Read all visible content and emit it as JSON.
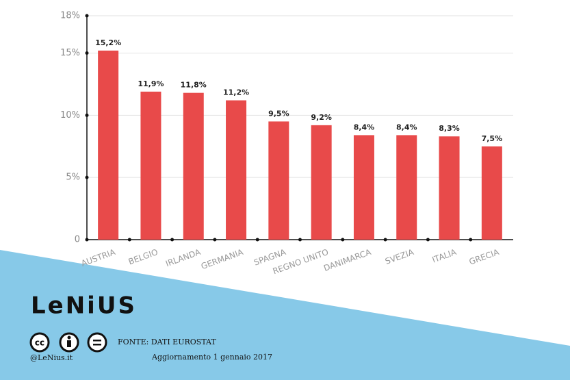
{
  "chart_data": {
    "type": "bar",
    "categories": [
      "AUSTRIA",
      "BELGIO",
      "IRLANDA",
      "GERMANIA",
      "SPAGNA",
      "REGNO UNITO",
      "DANIMARCA",
      "SVEZIA",
      "ITALIA",
      "GRECIA"
    ],
    "values": [
      15.2,
      11.9,
      11.8,
      11.2,
      9.5,
      9.2,
      8.4,
      8.4,
      8.3,
      7.5
    ],
    "value_labels": [
      "15,2%",
      "11,9%",
      "11,8%",
      "11,2%",
      "9,5%",
      "9,2%",
      "8,4%",
      "8,4%",
      "8,3%",
      "7,5%"
    ],
    "color": "#e84a4a",
    "ylim": [
      0,
      18
    ],
    "yticks": [
      0,
      {
        "value": 5,
        "label": "5%"
      },
      {
        "value": 10,
        "label": "10%"
      },
      {
        "value": 15,
        "label": "15%"
      },
      {
        "value": 18,
        "label": "18%"
      }
    ],
    "grid": true
  },
  "footer": {
    "logo": "LeNiUS",
    "license": "cc",
    "source": "FONTE: DATI EUROSTAT",
    "updated": "Aggiornamento 1 gennaio 2017",
    "handle": "@LeNius.it"
  }
}
